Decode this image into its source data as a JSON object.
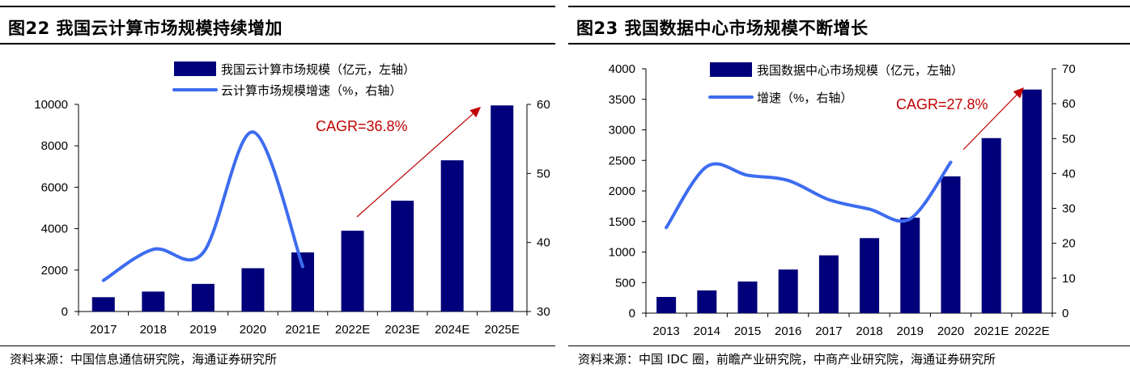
{
  "chart_data": [
    {
      "type": "bar+line",
      "title": "图22 我国云计算市场规模持续增加",
      "categories": [
        "2017",
        "2018",
        "2019",
        "2020",
        "2021E",
        "2022E",
        "2023E",
        "2024E",
        "2025E"
      ],
      "series": [
        {
          "name": "我国云计算市场规模（亿元，左轴）",
          "type": "bar",
          "axis": "left",
          "values": [
            692,
            963,
            1334,
            2091,
            2855,
            3900,
            5350,
            7300,
            9950
          ]
        },
        {
          "name": "云计算市场规模增速（%，右轴）",
          "type": "line",
          "axis": "right",
          "x": [
            "2017",
            "2018",
            "2019",
            "2020",
            "2021E"
          ],
          "values": [
            34.5,
            39.0,
            38.5,
            56.0,
            36.5
          ]
        }
      ],
      "y_left": {
        "min": 0,
        "max": 10000,
        "ticks": [
          0,
          2000,
          4000,
          6000,
          8000,
          10000
        ]
      },
      "y_right": {
        "min": 30,
        "max": 60,
        "ticks": [
          30,
          40,
          50,
          60
        ]
      },
      "annotation": {
        "text": "CAGR=36.8%",
        "color": "#c00000"
      },
      "legend": "top",
      "grid": false,
      "source": "资料来源：中国信息通信研究院，海通证券研究所"
    },
    {
      "type": "bar+line",
      "title": "图23 我国数据中心市场规模不断增长",
      "categories": [
        "2013",
        "2014",
        "2015",
        "2016",
        "2017",
        "2018",
        "2019",
        "2020",
        "2021E",
        "2022E"
      ],
      "series": [
        {
          "name": "我国数据中心市场规模（亿元，左轴）",
          "type": "bar",
          "axis": "left",
          "values": [
            265,
            372,
            518,
            714,
            946,
            1228,
            1563,
            2238,
            2865,
            3660
          ]
        },
        {
          "name": "增速（%，右轴）",
          "type": "line",
          "axis": "right",
          "x": [
            "2013",
            "2014",
            "2015",
            "2016",
            "2017",
            "2018",
            "2019",
            "2020"
          ],
          "values": [
            24.5,
            42.0,
            39.5,
            38.0,
            32.5,
            29.8,
            27.0,
            43.2
          ]
        }
      ],
      "y_left": {
        "min": 0,
        "max": 4000,
        "ticks": [
          0,
          500,
          1000,
          1500,
          2000,
          2500,
          3000,
          3500,
          4000
        ]
      },
      "y_right": {
        "min": 0,
        "max": 70,
        "ticks": [
          0,
          10,
          20,
          30,
          40,
          50,
          60,
          70
        ]
      },
      "annotation": {
        "text": "CAGR=27.8%",
        "color": "#c00000"
      },
      "legend": "top",
      "grid": false,
      "source": "资料来源：中国 IDC 圈，前瞻产业研究院，中商产业研究院，海通证券研究所"
    }
  ],
  "colors": {
    "bar": "#00007a",
    "line": "#3d6cf0",
    "annotation": "#c00000"
  }
}
